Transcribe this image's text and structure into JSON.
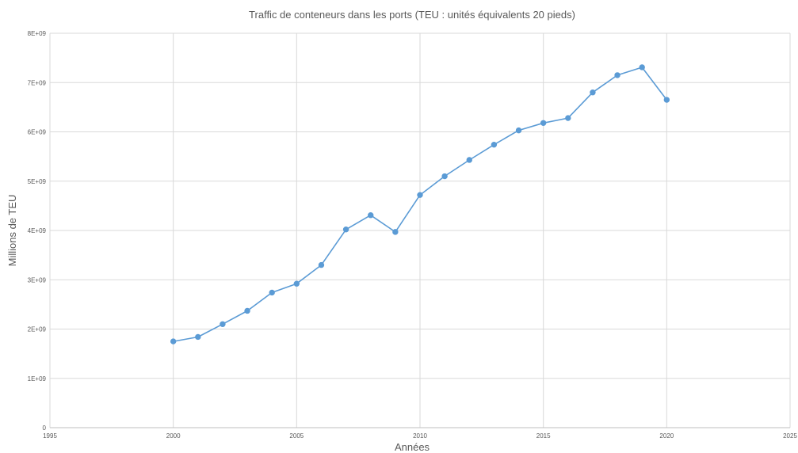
{
  "chart_data": {
    "type": "scatter",
    "title": "Traffic de conteneurs dans les ports (TEU : unités équivalents 20 pieds)",
    "xlabel": "Années",
    "ylabel": "Millions de TEU",
    "xlim": [
      1995,
      2025
    ],
    "ylim": [
      0,
      8000000000
    ],
    "x_ticks": [
      1995,
      2000,
      2005,
      2010,
      2015,
      2020,
      2025
    ],
    "x_tick_labels": [
      "1995",
      "2000",
      "2005",
      "2010",
      "2015",
      "2020",
      "2025"
    ],
    "y_ticks": [
      0,
      1000000000,
      2000000000,
      3000000000,
      4000000000,
      5000000000,
      6000000000,
      7000000000,
      8000000000
    ],
    "y_tick_labels": [
      "0",
      "1E+09",
      "2E+09",
      "3E+09",
      "4E+09",
      "5E+09",
      "6E+09",
      "7E+09",
      "8E+09"
    ],
    "grid": true,
    "legend": "none",
    "series": [
      {
        "color": "#5b9bd5",
        "marker": "circle",
        "line": "straight",
        "x": [
          2000,
          2001,
          2002,
          2003,
          2004,
          2005,
          2006,
          2007,
          2008,
          2009,
          2010,
          2011,
          2012,
          2013,
          2014,
          2015,
          2016,
          2017,
          2018,
          2019,
          2020
        ],
        "y": [
          1750000000,
          1840000000,
          2100000000,
          2370000000,
          2740000000,
          2920000000,
          3300000000,
          4020000000,
          4310000000,
          3970000000,
          4720000000,
          5100000000,
          5430000000,
          5740000000,
          6030000000,
          6180000000,
          6280000000,
          6800000000,
          7150000000,
          7310000000,
          6650000000
        ]
      }
    ]
  }
}
